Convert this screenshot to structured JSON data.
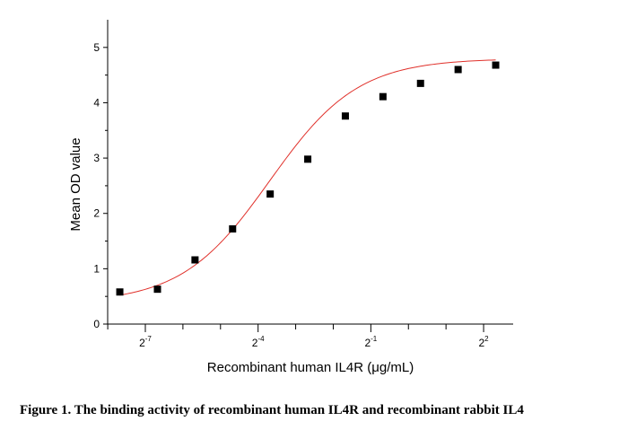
{
  "figure": {
    "caption": "Figure 1. The binding activity of recombinant human IL4R and recombinant rabbit IL4"
  },
  "chart_data": {
    "type": "scatter",
    "title": "",
    "xlabel": "Recombinant human IL4R (μg/mL)",
    "ylabel": "Mean OD value",
    "x_scale": "log2",
    "xlim": [
      0.0039,
      6.9
    ],
    "ylim": [
      0,
      5.5
    ],
    "x_tick_labels": [
      {
        "base": "2",
        "exp": "-7",
        "value": 0.0078125
      },
      {
        "base": "2",
        "exp": "-4",
        "value": 0.0625
      },
      {
        "base": "2",
        "exp": "-1",
        "value": 0.5
      },
      {
        "base": "2",
        "exp": "2",
        "value": 4
      }
    ],
    "y_ticks": [
      0,
      1,
      2,
      3,
      4,
      5
    ],
    "grid": false,
    "legend": "none",
    "marker_color": "#000000",
    "curve_color": "#e0302a",
    "series": [
      {
        "marker": "square",
        "x": [
          0.00488,
          0.00977,
          0.01953,
          0.03906,
          0.07813,
          0.15625,
          0.3125,
          0.625,
          1.25,
          2.5,
          5
        ],
        "y": [
          0.58,
          0.63,
          1.16,
          1.72,
          2.35,
          2.98,
          3.76,
          4.11,
          4.35,
          4.6,
          4.68
        ]
      }
    ],
    "fit_curve": {
      "model": "4PL",
      "bottom": 0.38,
      "top": 4.8,
      "ec50": 0.0775,
      "hill": 1.23
    }
  }
}
